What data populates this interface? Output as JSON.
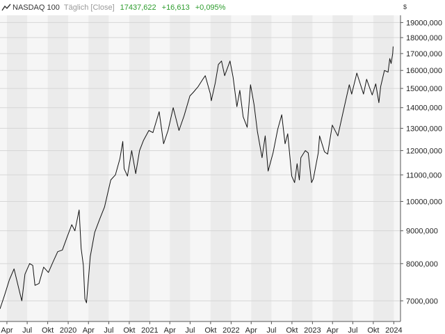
{
  "header": {
    "name": "NASDAQ 100",
    "interval": "Täglich [Close]",
    "last": "17437,622",
    "change": "+16,613",
    "change_pct": "+0,095%",
    "currency": "$",
    "up_color": "#2c9c2c"
  },
  "chart_data": {
    "type": "line",
    "title": "NASDAQ 100",
    "scale": "log",
    "grid": true,
    "x_range": [
      "2019-03-01",
      "2023-12-31"
    ],
    "ylim": [
      6500,
      19500
    ],
    "y_ticks": [
      {
        "value": 7000,
        "label": "7000,000"
      },
      {
        "value": 8000,
        "label": "8000,000"
      },
      {
        "value": 9000,
        "label": "9000,000"
      },
      {
        "value": 10000,
        "label": "10000,000"
      },
      {
        "value": 11000,
        "label": "11000,000"
      },
      {
        "value": 12000,
        "label": "12000,000"
      },
      {
        "value": 13000,
        "label": "13000,000"
      },
      {
        "value": 14000,
        "label": "14000,000"
      },
      {
        "value": 15000,
        "label": "15000,000"
      },
      {
        "value": 16000,
        "label": "16000,000"
      },
      {
        "value": 17000,
        "label": "17000,000"
      },
      {
        "value": 18000,
        "label": "18000,000"
      },
      {
        "value": 19000,
        "label": "19000,000"
      }
    ],
    "x_ticks": [
      {
        "date": "2019-04-01",
        "label": "Apr"
      },
      {
        "date": "2019-07-01",
        "label": "Jul"
      },
      {
        "date": "2019-10-01",
        "label": "Okt"
      },
      {
        "date": "2020-01-01",
        "label": "2020"
      },
      {
        "date": "2020-04-01",
        "label": "Apr"
      },
      {
        "date": "2020-07-01",
        "label": "Jul"
      },
      {
        "date": "2020-10-01",
        "label": "Okt"
      },
      {
        "date": "2021-01-01",
        "label": "2021"
      },
      {
        "date": "2021-04-01",
        "label": "Apr"
      },
      {
        "date": "2021-07-01",
        "label": "Jul"
      },
      {
        "date": "2021-10-01",
        "label": "Okt"
      },
      {
        "date": "2022-01-01",
        "label": "2022"
      },
      {
        "date": "2022-04-01",
        "label": "Apr"
      },
      {
        "date": "2022-07-01",
        "label": "Jul"
      },
      {
        "date": "2022-10-01",
        "label": "Okt"
      },
      {
        "date": "2023-01-01",
        "label": "2023"
      },
      {
        "date": "2023-04-01",
        "label": "Apr"
      },
      {
        "date": "2023-07-01",
        "label": "Jul"
      },
      {
        "date": "2023-10-01",
        "label": "Okt"
      },
      {
        "date": "2024-01-01",
        "label": "2024"
      }
    ],
    "series": [
      {
        "values": [
          [
            "2019-03-01",
            6800
          ],
          [
            "2019-03-22",
            7150
          ],
          [
            "2019-04-12",
            7550
          ],
          [
            "2019-05-03",
            7850
          ],
          [
            "2019-05-31",
            7150
          ],
          [
            "2019-06-07",
            7000
          ],
          [
            "2019-06-21",
            7700
          ],
          [
            "2019-07-12",
            8000
          ],
          [
            "2019-07-26",
            7950
          ],
          [
            "2019-08-05",
            7400
          ],
          [
            "2019-08-23",
            7450
          ],
          [
            "2019-09-13",
            7900
          ],
          [
            "2019-10-04",
            7750
          ],
          [
            "2019-10-25",
            8050
          ],
          [
            "2019-11-15",
            8350
          ],
          [
            "2019-12-06",
            8400
          ],
          [
            "2019-12-27",
            8800
          ],
          [
            "2020-01-17",
            9200
          ],
          [
            "2020-01-31",
            9000
          ],
          [
            "2020-02-19",
            9700
          ],
          [
            "2020-02-28",
            8450
          ],
          [
            "2020-03-09",
            7950
          ],
          [
            "2020-03-16",
            7050
          ],
          [
            "2020-03-23",
            6950
          ],
          [
            "2020-04-09",
            8200
          ],
          [
            "2020-04-29",
            8950
          ],
          [
            "2020-05-22",
            9400
          ],
          [
            "2020-06-12",
            9800
          ],
          [
            "2020-07-10",
            10800
          ],
          [
            "2020-07-31",
            11000
          ],
          [
            "2020-08-20",
            11650
          ],
          [
            "2020-09-02",
            12400
          ],
          [
            "2020-09-08",
            11250
          ],
          [
            "2020-09-23",
            10950
          ],
          [
            "2020-10-12",
            12000
          ],
          [
            "2020-10-30",
            11050
          ],
          [
            "2020-11-16",
            12000
          ],
          [
            "2020-12-04",
            12450
          ],
          [
            "2020-12-28",
            12900
          ],
          [
            "2021-01-15",
            12800
          ],
          [
            "2021-02-12",
            13800
          ],
          [
            "2021-03-04",
            12300
          ],
          [
            "2021-03-24",
            12900
          ],
          [
            "2021-04-16",
            14000
          ],
          [
            "2021-05-12",
            12900
          ],
          [
            "2021-06-04",
            13600
          ],
          [
            "2021-06-30",
            14600
          ],
          [
            "2021-07-16",
            14800
          ],
          [
            "2021-08-06",
            15100
          ],
          [
            "2021-08-27",
            15500
          ],
          [
            "2021-09-07",
            15700
          ],
          [
            "2021-09-30",
            14700
          ],
          [
            "2021-10-04",
            14350
          ],
          [
            "2021-10-22",
            15300
          ],
          [
            "2021-11-05",
            16350
          ],
          [
            "2021-11-19",
            16550
          ],
          [
            "2021-12-03",
            15700
          ],
          [
            "2021-12-27",
            16550
          ],
          [
            "2022-01-10",
            15600
          ],
          [
            "2022-01-27",
            14050
          ],
          [
            "2022-02-09",
            14900
          ],
          [
            "2022-02-24",
            13550
          ],
          [
            "2022-03-14",
            13050
          ],
          [
            "2022-03-29",
            15200
          ],
          [
            "2022-04-14",
            14150
          ],
          [
            "2022-04-29",
            12850
          ],
          [
            "2022-05-20",
            11700
          ],
          [
            "2022-06-03",
            12650
          ],
          [
            "2022-06-16",
            11150
          ],
          [
            "2022-07-08",
            11900
          ],
          [
            "2022-07-29",
            12950
          ],
          [
            "2022-08-16",
            13650
          ],
          [
            "2022-08-31",
            12300
          ],
          [
            "2022-09-12",
            12750
          ],
          [
            "2022-09-30",
            10950
          ],
          [
            "2022-10-13",
            10700
          ],
          [
            "2022-10-24",
            11450
          ],
          [
            "2022-11-03",
            10800
          ],
          [
            "2022-11-10",
            11700
          ],
          [
            "2022-11-30",
            12000
          ],
          [
            "2022-12-13",
            11900
          ],
          [
            "2022-12-28",
            10700
          ],
          [
            "2023-01-05",
            10850
          ],
          [
            "2023-01-27",
            11900
          ],
          [
            "2023-02-02",
            12650
          ],
          [
            "2023-02-24",
            11950
          ],
          [
            "2023-03-10",
            11850
          ],
          [
            "2023-03-31",
            13150
          ],
          [
            "2023-04-25",
            12650
          ],
          [
            "2023-05-19",
            13800
          ],
          [
            "2023-06-15",
            15200
          ],
          [
            "2023-06-26",
            14700
          ],
          [
            "2023-07-19",
            15850
          ],
          [
            "2023-08-18",
            14700
          ],
          [
            "2023-09-01",
            15500
          ],
          [
            "2023-09-26",
            14650
          ],
          [
            "2023-10-12",
            15250
          ],
          [
            "2023-10-26",
            14250
          ],
          [
            "2023-11-03",
            15100
          ],
          [
            "2023-11-20",
            16000
          ],
          [
            "2023-12-06",
            15900
          ],
          [
            "2023-12-14",
            16700
          ],
          [
            "2023-12-20",
            16400
          ],
          [
            "2023-12-27",
            17000
          ],
          [
            "2023-12-29",
            17437.622
          ]
        ]
      }
    ]
  }
}
